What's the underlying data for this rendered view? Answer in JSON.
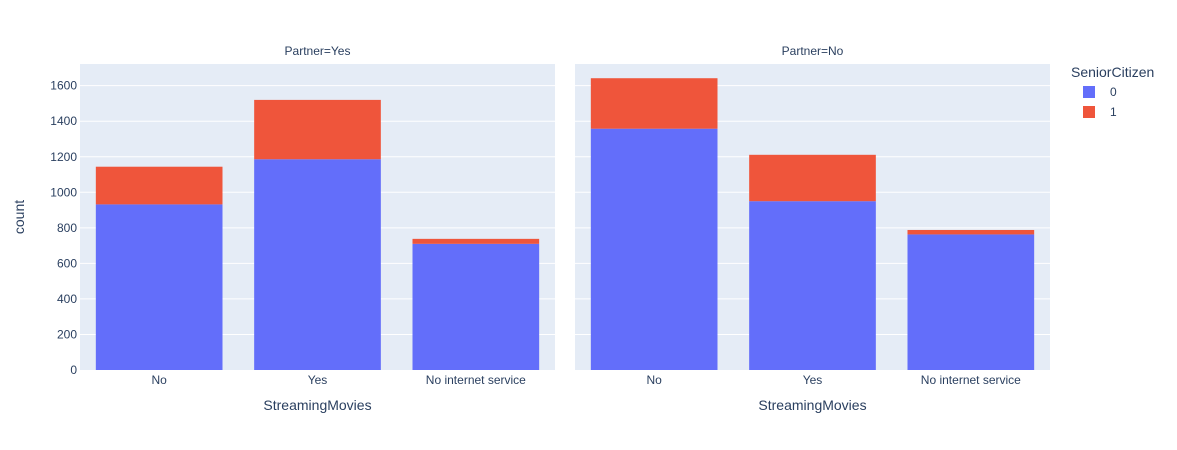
{
  "chart_data": {
    "type": "bar",
    "barmode": "stack",
    "facet_column": "Partner",
    "xlabel": "StreamingMovies",
    "ylabel": "count",
    "ylim": [
      0,
      1722
    ],
    "yticks": [
      0,
      200,
      400,
      600,
      800,
      1000,
      1200,
      1400,
      1600
    ],
    "categories": [
      "No",
      "Yes",
      "No internet service"
    ],
    "grid": true,
    "legend": {
      "title": "SeniorCitizen",
      "placement": "right",
      "items": [
        {
          "label": "0",
          "color": "#636efa"
        },
        {
          "label": "1",
          "color": "#ef553b"
        }
      ]
    },
    "facets": [
      {
        "title": "Partner=Yes",
        "series": [
          {
            "name": "0",
            "values": [
              932,
              1186,
              710
            ]
          },
          {
            "name": "1",
            "values": [
              212,
              334,
              28
            ]
          }
        ]
      },
      {
        "title": "Partner=No",
        "series": [
          {
            "name": "0",
            "values": [
              1358,
              950,
              763
            ]
          },
          {
            "name": "1",
            "values": [
              284,
              261,
              25
            ]
          }
        ]
      }
    ],
    "colors": {
      "plot_bg": "#e5ecf6",
      "grid": "#ffffff",
      "text": "#2a3f5f"
    }
  }
}
